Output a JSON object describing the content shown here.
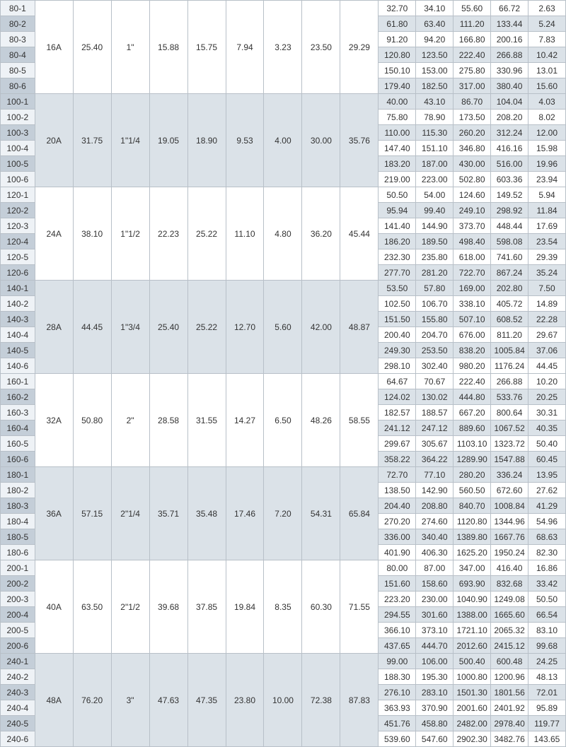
{
  "groups": [
    {
      "shade": "light",
      "labels": [
        "80-1",
        "80-2",
        "80-3",
        "80-4",
        "80-5",
        "80-6"
      ],
      "shared": [
        "16A",
        "25.40",
        "1\"",
        "15.88",
        "15.75",
        "7.94",
        "3.23",
        "23.50",
        "29.29"
      ],
      "right": [
        [
          "32.70",
          "34.10",
          "55.60",
          "66.72",
          "2.63"
        ],
        [
          "61.80",
          "63.40",
          "111.20",
          "133.44",
          "5.24"
        ],
        [
          "91.20",
          "94.20",
          "166.80",
          "200.16",
          "7.83"
        ],
        [
          "120.80",
          "123.50",
          "222.40",
          "266.88",
          "10.42"
        ],
        [
          "150.10",
          "153.00",
          "275.80",
          "330.96",
          "13.01"
        ],
        [
          "179.40",
          "182.50",
          "317.00",
          "380.40",
          "15.60"
        ]
      ]
    },
    {
      "shade": "dark",
      "labels": [
        "100-1",
        "100-2",
        "100-3",
        "100-4",
        "100-5",
        "100-6"
      ],
      "shared": [
        "20A",
        "31.75",
        "1\"1/4",
        "19.05",
        "18.90",
        "9.53",
        "4.00",
        "30.00",
        "35.76"
      ],
      "right": [
        [
          "40.00",
          "43.10",
          "86.70",
          "104.04",
          "4.03"
        ],
        [
          "75.80",
          "78.90",
          "173.50",
          "208.20",
          "8.02"
        ],
        [
          "110.00",
          "115.30",
          "260.20",
          "312.24",
          "12.00"
        ],
        [
          "147.40",
          "151.10",
          "346.80",
          "416.16",
          "15.98"
        ],
        [
          "183.20",
          "187.00",
          "430.00",
          "516.00",
          "19.96"
        ],
        [
          "219.00",
          "223.00",
          "502.80",
          "603.36",
          "23.94"
        ]
      ]
    },
    {
      "shade": "light",
      "labels": [
        "120-1",
        "120-2",
        "120-3",
        "120-4",
        "120-5",
        "120-6"
      ],
      "shared": [
        "24A",
        "38.10",
        "1\"1/2",
        "22.23",
        "25.22",
        "11.10",
        "4.80",
        "36.20",
        "45.44"
      ],
      "right": [
        [
          "50.50",
          "54.00",
          "124.60",
          "149.52",
          "5.94"
        ],
        [
          "95.94",
          "99.40",
          "249.10",
          "298.92",
          "11.84"
        ],
        [
          "141.40",
          "144.90",
          "373.70",
          "448.44",
          "17.69"
        ],
        [
          "186.20",
          "189.50",
          "498.40",
          "598.08",
          "23.54"
        ],
        [
          "232.30",
          "235.80",
          "618.00",
          "741.60",
          "29.39"
        ],
        [
          "277.70",
          "281.20",
          "722.70",
          "867.24",
          "35.24"
        ]
      ]
    },
    {
      "shade": "dark",
      "labels": [
        "140-1",
        "140-2",
        "140-3",
        "140-4",
        "140-5",
        "140-6"
      ],
      "shared": [
        "28A",
        "44.45",
        "1\"3/4",
        "25.40",
        "25.22",
        "12.70",
        "5.60",
        "42.00",
        "48.87"
      ],
      "right": [
        [
          "53.50",
          "57.80",
          "169.00",
          "202.80",
          "7.50"
        ],
        [
          "102.50",
          "106.70",
          "338.10",
          "405.72",
          "14.89"
        ],
        [
          "151.50",
          "155.80",
          "507.10",
          "608.52",
          "22.28"
        ],
        [
          "200.40",
          "204.70",
          "676.00",
          "811.20",
          "29.67"
        ],
        [
          "249.30",
          "253.50",
          "838.20",
          "1005.84",
          "37.06"
        ],
        [
          "298.10",
          "302.40",
          "980.20",
          "1176.24",
          "44.45"
        ]
      ]
    },
    {
      "shade": "light",
      "labels": [
        "160-1",
        "160-2",
        "160-3",
        "160-4",
        "160-5",
        "160-6"
      ],
      "shared": [
        "32A",
        "50.80",
        "2\"",
        "28.58",
        "31.55",
        "14.27",
        "6.50",
        "48.26",
        "58.55"
      ],
      "right": [
        [
          "64.67",
          "70.67",
          "222.40",
          "266.88",
          "10.20"
        ],
        [
          "124.02",
          "130.02",
          "444.80",
          "533.76",
          "20.25"
        ],
        [
          "182.57",
          "188.57",
          "667.20",
          "800.64",
          "30.31"
        ],
        [
          "241.12",
          "247.12",
          "889.60",
          "1067.52",
          "40.35"
        ],
        [
          "299.67",
          "305.67",
          "1103.10",
          "1323.72",
          "50.40"
        ],
        [
          "358.22",
          "364.22",
          "1289.90",
          "1547.88",
          "60.45"
        ]
      ]
    },
    {
      "shade": "dark",
      "labels": [
        "180-1",
        "180-2",
        "180-3",
        "180-4",
        "180-5",
        "180-6"
      ],
      "shared": [
        "36A",
        "57.15",
        "2\"1/4",
        "35.71",
        "35.48",
        "17.46",
        "7.20",
        "54.31",
        "65.84"
      ],
      "right": [
        [
          "72.70",
          "77.10",
          "280.20",
          "336.24",
          "13.95"
        ],
        [
          "138.50",
          "142.90",
          "560.50",
          "672.60",
          "27.62"
        ],
        [
          "204.40",
          "208.80",
          "840.70",
          "1008.84",
          "41.29"
        ],
        [
          "270.20",
          "274.60",
          "1120.80",
          "1344.96",
          "54.96"
        ],
        [
          "336.00",
          "340.40",
          "1389.80",
          "1667.76",
          "68.63"
        ],
        [
          "401.90",
          "406.30",
          "1625.20",
          "1950.24",
          "82.30"
        ]
      ]
    },
    {
      "shade": "light",
      "labels": [
        "200-1",
        "200-2",
        "200-3",
        "200-4",
        "200-5",
        "200-6"
      ],
      "shared": [
        "40A",
        "63.50",
        "2\"1/2",
        "39.68",
        "37.85",
        "19.84",
        "8.35",
        "60.30",
        "71.55"
      ],
      "right": [
        [
          "80.00",
          "87.00",
          "347.00",
          "416.40",
          "16.86"
        ],
        [
          "151.60",
          "158.60",
          "693.90",
          "832.68",
          "33.42"
        ],
        [
          "223.20",
          "230.00",
          "1040.90",
          "1249.08",
          "50.50"
        ],
        [
          "294.55",
          "301.60",
          "1388.00",
          "1665.60",
          "66.54"
        ],
        [
          "366.10",
          "373.10",
          "1721.10",
          "2065.32",
          "83.10"
        ],
        [
          "437.65",
          "444.70",
          "2012.60",
          "2415.12",
          "99.68"
        ]
      ]
    },
    {
      "shade": "dark",
      "labels": [
        "240-1",
        "240-2",
        "240-3",
        "240-4",
        "240-5",
        "240-6"
      ],
      "shared": [
        "48A",
        "76.20",
        "3\"",
        "47.63",
        "47.35",
        "23.80",
        "10.00",
        "72.38",
        "87.83"
      ],
      "right": [
        [
          "99.00",
          "106.00",
          "500.40",
          "600.48",
          "24.25"
        ],
        [
          "188.30",
          "195.30",
          "1000.80",
          "1200.96",
          "48.13"
        ],
        [
          "276.10",
          "283.10",
          "1501.30",
          "1801.56",
          "72.01"
        ],
        [
          "363.93",
          "370.90",
          "2001.60",
          "2401.92",
          "95.89"
        ],
        [
          "451.76",
          "458.80",
          "2482.00",
          "2978.40",
          "119.77"
        ],
        [
          "539.60",
          "547.60",
          "2902.30",
          "3482.76",
          "143.65"
        ]
      ]
    }
  ]
}
